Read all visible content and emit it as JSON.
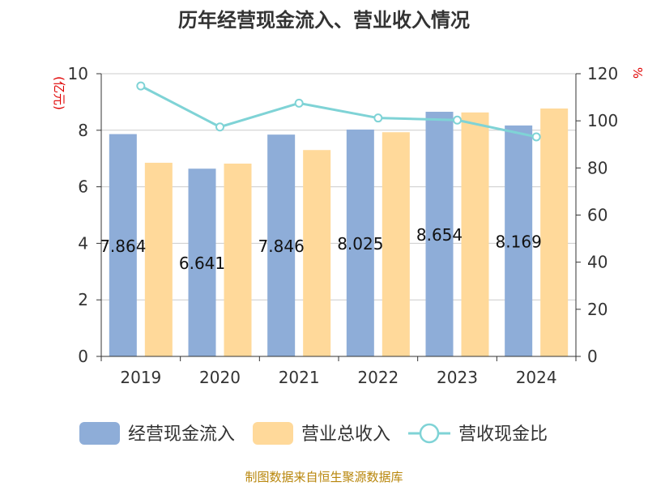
{
  "chart_data": {
    "type": "bar",
    "title": "历年经营现金流入、营业收入情况",
    "categories": [
      "2019",
      "2020",
      "2021",
      "2022",
      "2023",
      "2024"
    ],
    "series": [
      {
        "name": "经营现金流入",
        "type": "bar",
        "axis": "left",
        "color": "#8eadd8",
        "values": [
          7.864,
          6.641,
          7.846,
          8.025,
          8.654,
          8.169
        ],
        "labels": [
          "7.864",
          "6.641",
          "7.846",
          "8.025",
          "8.654",
          "8.169"
        ]
      },
      {
        "name": "营业总收入",
        "type": "bar",
        "axis": "left",
        "color": "#ffd99a",
        "values": [
          6.85,
          6.82,
          7.3,
          7.93,
          8.63,
          8.77
        ]
      },
      {
        "name": "营收现金比",
        "type": "line",
        "axis": "right",
        "color": "#7fd3d6",
        "values": [
          114.8,
          97.4,
          107.5,
          101.2,
          100.3,
          93.2
        ]
      }
    ],
    "y_left": {
      "label": "(亿元)",
      "ylim": [
        0,
        10
      ],
      "ticks": [
        "0",
        "2",
        "4",
        "6",
        "8",
        "10"
      ]
    },
    "y_right": {
      "label": "%",
      "ylim": [
        0,
        120
      ],
      "ticks": [
        "0",
        "20",
        "40",
        "60",
        "80",
        "100",
        "120"
      ]
    },
    "grid": true,
    "legend": "bottom"
  },
  "source": "制图数据来自恒生聚源数据库"
}
